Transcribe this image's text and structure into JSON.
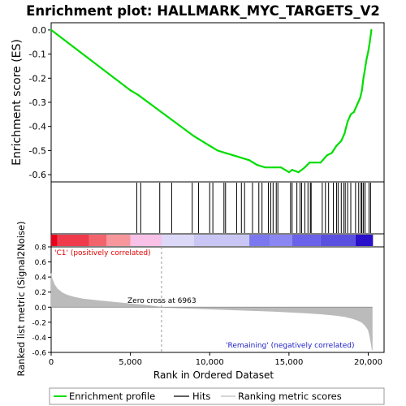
{
  "chart_data": [
    {
      "type": "line",
      "title": "Enrichment plot: HALLMARK_MYC_TARGETS_V2",
      "ylabel": "Enrichment score (ES)",
      "ylim": [
        -0.63,
        0.03
      ],
      "xlim": [
        0,
        21000
      ],
      "yticks": [
        -0.6,
        -0.5,
        -0.4,
        -0.3,
        -0.2,
        -0.1,
        0.0
      ],
      "ytick_labels": [
        "-0.6",
        "-0.5",
        "-0.4",
        "-0.3",
        "-0.2",
        "-0.1",
        "0.0"
      ],
      "grid": false,
      "series": [
        {
          "name": "Enrichment profile",
          "color": "#00dd00",
          "x": [
            0,
            5000,
            5500,
            9000,
            10000,
            10500,
            11000,
            11500,
            12000,
            12500,
            13000,
            13500,
            14000,
            14500,
            15000,
            15200,
            15600,
            16000,
            16300,
            16600,
            17000,
            17400,
            17700,
            18000,
            18300,
            18500,
            18700,
            18900,
            19100,
            19300,
            19500,
            19600,
            19700,
            19800,
            19900,
            20000,
            20100,
            20200
          ],
          "y": [
            0.0,
            -0.25,
            -0.27,
            -0.44,
            -0.48,
            -0.5,
            -0.51,
            -0.52,
            -0.53,
            -0.54,
            -0.56,
            -0.57,
            -0.57,
            -0.57,
            -0.59,
            -0.58,
            -0.59,
            -0.57,
            -0.55,
            -0.55,
            -0.55,
            -0.52,
            -0.51,
            -0.48,
            -0.46,
            -0.43,
            -0.38,
            -0.35,
            -0.34,
            -0.31,
            -0.28,
            -0.25,
            -0.2,
            -0.16,
            -0.12,
            -0.09,
            -0.05,
            0.0
          ]
        }
      ]
    },
    {
      "type": "scatter",
      "series": [
        {
          "name": "Hits",
          "color": "#000000",
          "x": [
            5400,
            5650,
            6850,
            7600,
            8900,
            9300,
            10000,
            10200,
            10900,
            11000,
            11700,
            12000,
            12200,
            12700,
            13100,
            13300,
            13700,
            13850,
            14000,
            14200,
            14300,
            15100,
            15200,
            15500,
            15700,
            15800,
            16000,
            16200,
            16350,
            16400,
            17100,
            17300,
            17500,
            17800,
            18000,
            18100,
            18300,
            18450,
            18550,
            18700,
            18900,
            19200,
            19400,
            19550,
            19600,
            19700,
            19800,
            20050,
            20150
          ]
        }
      ]
    },
    {
      "type": "area",
      "ylabel": "Ranked list metric (Signal2Noise)",
      "xlabel": "Rank in Ordered Dataset",
      "xlim": [
        0,
        21000
      ],
      "ylim": [
        -0.6,
        0.8
      ],
      "xticks": [
        0,
        5000,
        10000,
        15000,
        20000
      ],
      "xtick_labels": [
        "0",
        "5,000",
        "10,000",
        "15,000",
        "20,000"
      ],
      "yticks": [
        -0.6,
        -0.4,
        -0.2,
        0.0,
        0.2,
        0.4,
        0.6,
        0.8
      ],
      "ytick_labels": [
        "-0.6",
        "-0.4",
        "-0.2",
        "0.0",
        "0.2",
        "0.4",
        "0.6",
        "0.8"
      ],
      "annotations": {
        "positive": "'C1' (positively correlated)",
        "zero_cross": "Zero cross at 6963",
        "negative": "'Remaining' (negatively correlated)"
      },
      "zero_cross": 6963,
      "series": [
        {
          "name": "Ranking metric scores",
          "color": "#bbbbbb",
          "x": [
            0,
            50,
            200,
            400,
            700,
            1000,
            1500,
            2000,
            3000,
            4000,
            5000,
            6000,
            6963,
            8000,
            10000,
            12000,
            14000,
            15000,
            16000,
            17000,
            18000,
            18500,
            19000,
            19300,
            19600,
            19800,
            20000,
            20100,
            20200,
            20250
          ],
          "values": [
            0.45,
            0.38,
            0.3,
            0.24,
            0.19,
            0.16,
            0.13,
            0.11,
            0.085,
            0.065,
            0.045,
            0.025,
            0.0,
            -0.01,
            -0.025,
            -0.04,
            -0.055,
            -0.065,
            -0.075,
            -0.09,
            -0.11,
            -0.125,
            -0.15,
            -0.17,
            -0.2,
            -0.24,
            -0.3,
            -0.38,
            -0.5,
            -0.57
          ]
        }
      ]
    }
  ],
  "colorbar": {
    "xmax": 20300,
    "segments": [
      {
        "to": 400,
        "color": "#e8001a"
      },
      {
        "to": 2400,
        "color": "#ef3a4b"
      },
      {
        "to": 3500,
        "color": "#f3636c"
      },
      {
        "to": 5000,
        "color": "#f7979c"
      },
      {
        "to": 6963,
        "color": "#f9c0e8"
      },
      {
        "to": 9000,
        "color": "#dcd8f8"
      },
      {
        "to": 12500,
        "color": "#c9c6f5"
      },
      {
        "to": 13800,
        "color": "#7b78ef"
      },
      {
        "to": 15200,
        "color": "#8a87f2"
      },
      {
        "to": 17000,
        "color": "#6a62e8"
      },
      {
        "to": 19200,
        "color": "#5a50e0"
      },
      {
        "to": 20300,
        "color": "#2a10c8"
      }
    ]
  },
  "legend": {
    "items": [
      {
        "label": "Enrichment profile",
        "color": "#00dd00"
      },
      {
        "label": "Hits",
        "color": "#000000"
      },
      {
        "label": "Ranking metric scores",
        "color": "#bbbbbb"
      }
    ]
  }
}
